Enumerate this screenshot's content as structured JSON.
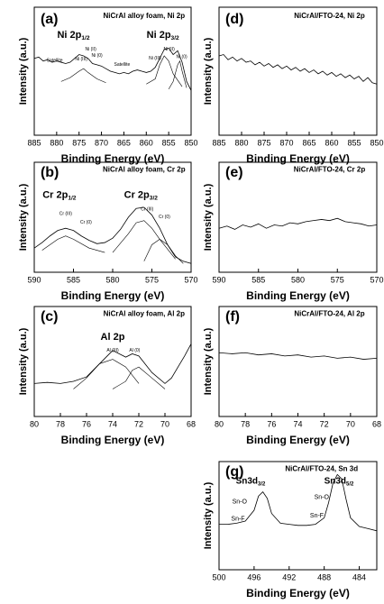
{
  "chart_data": [
    {
      "type": "line",
      "xlabel": "Binding Energy (eV)",
      "ylabel": "Intensity (a.u.)",
      "xlim": [
        885,
        850
      ],
      "xticks": [
        885,
        880,
        875,
        870,
        865,
        860,
        855,
        850
      ],
      "ylim": [
        0,
        100
      ],
      "series": [
        {
          "color": "#000000",
          "x": [
            885,
            884,
            883,
            882,
            881,
            880,
            879,
            878,
            877,
            876,
            875,
            874,
            873,
            872,
            871,
            870,
            869,
            868,
            867,
            866,
            865,
            864,
            863,
            862,
            861,
            860,
            859,
            858,
            857,
            856,
            855,
            854,
            853,
            852,
            851,
            850
          ],
          "values": [
            60,
            61,
            58,
            59,
            57,
            58,
            57,
            56,
            57,
            60,
            63,
            62,
            60,
            56,
            55,
            54,
            52,
            50,
            49,
            48,
            49,
            48,
            50,
            51,
            50,
            49,
            50,
            53,
            60,
            67,
            68,
            63,
            66,
            57,
            42,
            35
          ]
        },
        {
          "color": "#000000",
          "x": [
            879,
            877,
            875,
            874,
            873,
            871,
            869
          ],
          "values": [
            42,
            45,
            50,
            52,
            49,
            44,
            41
          ]
        },
        {
          "color": "#000000",
          "x": [
            860,
            858,
            857,
            856,
            855,
            854,
            852
          ],
          "values": [
            40,
            44,
            55,
            62,
            58,
            48,
            38
          ]
        },
        {
          "color": "#000000",
          "x": [
            855,
            854,
            853,
            852.5,
            852,
            851
          ],
          "values": [
            36,
            42,
            55,
            58,
            50,
            37
          ]
        }
      ],
      "annotations": [
        {
          "text": "(a)"
        },
        {
          "text": "NiCrAl alloy foam, Ni 2p"
        },
        {
          "text": "Ni 2p",
          "sub": "1/2"
        },
        {
          "text": "Ni 2p",
          "sub": "3/2"
        },
        {
          "text": "Satellite"
        },
        {
          "text": "Ni (III)"
        },
        {
          "text": "Ni (II)"
        },
        {
          "text": "Ni (0)"
        },
        {
          "text": "Satellite"
        },
        {
          "text": "Ni (III)"
        },
        {
          "text": "Ni (II)"
        },
        {
          "text": "Ni (0)"
        }
      ]
    },
    {
      "type": "line",
      "xlabel": "Binding Energy (eV)",
      "ylabel": "Intensity (a.u.)",
      "xlim": [
        885,
        850
      ],
      "xticks": [
        885,
        880,
        875,
        870,
        865,
        860,
        855,
        850
      ],
      "ylim": [
        0,
        100
      ],
      "series": [
        {
          "color": "#000000",
          "x": [
            885,
            884,
            883,
            882,
            881,
            880,
            879,
            878,
            877,
            876,
            875,
            874,
            873,
            872,
            871,
            870,
            869,
            868,
            867,
            866,
            865,
            864,
            863,
            862,
            861,
            860,
            859,
            858,
            857,
            856,
            855,
            854,
            853,
            852,
            851,
            850
          ],
          "values": [
            62,
            63,
            59,
            61,
            58,
            60,
            57,
            58,
            55,
            57,
            54,
            56,
            53,
            55,
            52,
            54,
            51,
            53,
            50,
            52,
            49,
            51,
            48,
            50,
            47,
            49,
            46,
            48,
            45,
            47,
            44,
            46,
            42,
            45,
            41,
            40
          ]
        }
      ],
      "annotations": [
        {
          "text": "(d)"
        },
        {
          "text": "NiCrAl/FTO-24, Ni 2p"
        }
      ]
    },
    {
      "type": "line",
      "xlabel": "Binding Energy (eV)",
      "ylabel": "Intensity (a.u.)",
      "xlim": [
        590,
        570
      ],
      "xticks": [
        590,
        585,
        580,
        575,
        570
      ],
      "ylim": [
        0,
        100
      ],
      "series": [
        {
          "color": "#000000",
          "x": [
            590,
            589,
            588,
            587,
            586,
            585,
            584,
            583,
            582,
            581,
            580,
            579,
            578,
            577,
            576,
            575,
            574,
            573,
            572,
            571,
            570
          ],
          "values": [
            22,
            27,
            33,
            38,
            40,
            38,
            33,
            29,
            26,
            27,
            31,
            39,
            50,
            58,
            59,
            52,
            40,
            25,
            14,
            10,
            8
          ]
        },
        {
          "color": "#000000",
          "x": [
            589,
            587,
            586,
            585,
            583,
            581
          ],
          "values": [
            20,
            30,
            33,
            30,
            22,
            18
          ]
        },
        {
          "color": "#000000",
          "x": [
            580,
            578,
            577,
            576,
            575,
            574,
            572
          ],
          "values": [
            18,
            35,
            45,
            47,
            40,
            30,
            12
          ]
        },
        {
          "color": "#000000",
          "x": [
            576,
            575,
            574,
            573,
            572,
            571
          ],
          "values": [
            10,
            25,
            30,
            25,
            15,
            8
          ]
        }
      ],
      "annotations": [
        {
          "text": "(b)"
        },
        {
          "text": "NiCrAl alloy foam, Cr 2p"
        },
        {
          "text": "Cr 2p",
          "sub": "1/2"
        },
        {
          "text": "Cr 2p",
          "sub": "3/2"
        },
        {
          "text": "Cr (III)"
        },
        {
          "text": "Cr (0)"
        },
        {
          "text": "Cr (III)"
        },
        {
          "text": "Cr (0)"
        }
      ]
    },
    {
      "type": "line",
      "xlabel": "Binding Energy (eV)",
      "ylabel": "Intensity (a.u.)",
      "xlim": [
        590,
        570
      ],
      "xticks": [
        590,
        585,
        580,
        575,
        570
      ],
      "ylim": [
        0,
        100
      ],
      "series": [
        {
          "color": "#000000",
          "x": [
            590,
            589,
            588,
            587,
            586,
            585,
            584,
            583,
            582,
            581,
            580,
            579,
            578,
            577,
            576,
            575,
            574,
            573,
            572,
            571,
            570
          ],
          "values": [
            40,
            42,
            39,
            43,
            41,
            44,
            40,
            43,
            42,
            45,
            44,
            46,
            47,
            48,
            47,
            49,
            46,
            45,
            44,
            42,
            43
          ]
        }
      ],
      "annotations": [
        {
          "text": "(e)"
        },
        {
          "text": "NiCrAl/FTO-24, Cr 2p"
        }
      ]
    },
    {
      "type": "line",
      "xlabel": "Binding Energy (eV)",
      "ylabel": "Intensity (a.u.)",
      "xlim": [
        80,
        68
      ],
      "xticks": [
        80,
        78,
        76,
        74,
        72,
        70,
        68
      ],
      "ylim": [
        0,
        100
      ],
      "series": [
        {
          "color": "#000000",
          "x": [
            80,
            79,
            78,
            77,
            76,
            75,
            74,
            73,
            72.5,
            72,
            71,
            70,
            69.5,
            69,
            68.5,
            68
          ],
          "values": [
            30,
            31,
            30,
            32,
            36,
            48,
            60,
            54,
            57,
            55,
            40,
            30,
            35,
            45,
            55,
            66
          ]
        },
        {
          "color": "#000000",
          "x": [
            77,
            76,
            75,
            74,
            73,
            72
          ],
          "values": [
            25,
            35,
            48,
            52,
            45,
            30
          ]
        },
        {
          "color": "#000000",
          "x": [
            74,
            73,
            72.5,
            72,
            71,
            70
          ],
          "values": [
            25,
            32,
            42,
            45,
            35,
            25
          ]
        }
      ],
      "annotations": [
        {
          "text": "(c)"
        },
        {
          "text": "NiCrAl alloy foam, Al 2p"
        },
        {
          "text": "Al 2p"
        },
        {
          "text": "Al (III)"
        },
        {
          "text": "Al (0)"
        }
      ]
    },
    {
      "type": "line",
      "xlabel": "Binding Energy (eV)",
      "ylabel": "Intensity (a.u.)",
      "xlim": [
        80,
        68
      ],
      "xticks": [
        80,
        78,
        76,
        74,
        72,
        70,
        68
      ],
      "ylim": [
        0,
        100
      ],
      "series": [
        {
          "color": "#000000",
          "x": [
            80,
            79,
            78,
            77,
            76,
            75,
            74,
            73,
            72,
            71,
            70,
            69,
            68
          ],
          "values": [
            58,
            57,
            58,
            56,
            57,
            55,
            56,
            54,
            55,
            53,
            54,
            52,
            53
          ]
        }
      ],
      "annotations": [
        {
          "text": "(f)"
        },
        {
          "text": "NiCrAl/FTO-24, Al 2p"
        }
      ]
    },
    {
      "type": "line",
      "xlabel": "Binding Energy (eV)",
      "ylabel": "Intensity (a.u.)",
      "xlim": [
        500,
        482
      ],
      "xticks": [
        500,
        496,
        492,
        488,
        484
      ],
      "ylim": [
        0,
        100
      ],
      "series": [
        {
          "color": "#000000",
          "x": [
            500,
            499,
            498,
            497,
            496,
            495.5,
            495,
            494.5,
            494,
            493,
            492,
            491,
            490,
            489,
            488,
            487.5,
            487,
            486.5,
            486,
            485.5,
            485,
            484,
            483,
            482
          ],
          "values": [
            42,
            42,
            43,
            45,
            55,
            68,
            72,
            66,
            52,
            43,
            42,
            41,
            41,
            42,
            48,
            62,
            80,
            88,
            84,
            65,
            48,
            40,
            38,
            36
          ]
        }
      ],
      "annotations": [
        {
          "text": "(g)"
        },
        {
          "text": "NiCrAl/FTO-24, Sn 3d"
        },
        {
          "text": "Sn3d",
          "sub": "3/2"
        },
        {
          "text": "Sn3d",
          "sub": "5/2"
        },
        {
          "text": "Sn-O"
        },
        {
          "text": "Sn-F"
        },
        {
          "text": "Sn-O"
        },
        {
          "text": "Sn-F"
        }
      ]
    }
  ]
}
